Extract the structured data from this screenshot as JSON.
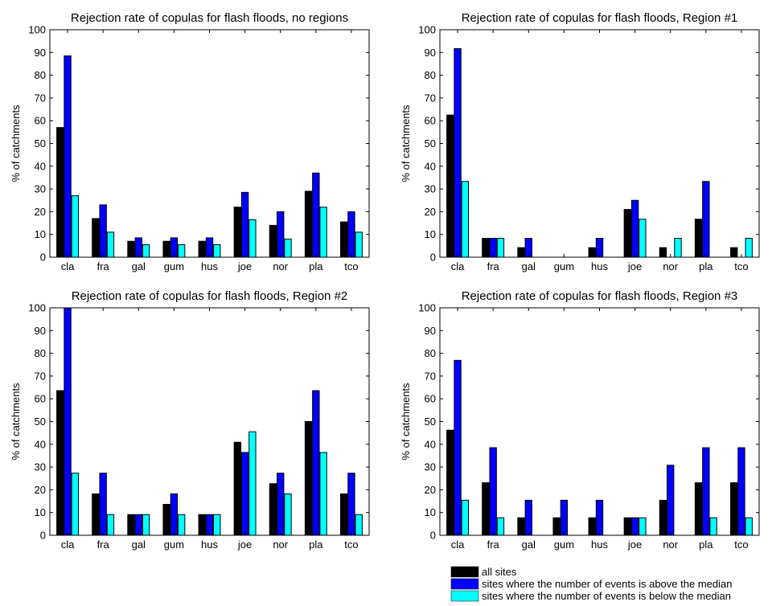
{
  "legend": [
    {
      "label": "all sites",
      "color": "#000000"
    },
    {
      "label": "sites where the number of events is above the median",
      "color": "#0000ff"
    },
    {
      "label": "sites where the number of events is below the median",
      "color": "#00ffff"
    }
  ],
  "chart_data": [
    {
      "type": "bar",
      "title": "Rejection rate of copulas for flash floods, no regions",
      "xlabel": "",
      "ylabel": "% of catchments",
      "ylim": [
        0,
        100
      ],
      "yticks": [
        0,
        10,
        20,
        30,
        40,
        50,
        60,
        70,
        80,
        90,
        100
      ],
      "grid": false,
      "categories": [
        "cla",
        "fra",
        "gal",
        "gum",
        "hus",
        "joe",
        "nor",
        "pla",
        "tco"
      ],
      "series": [
        {
          "name": "all sites",
          "color": "#000000",
          "values": [
            57,
            17,
            7,
            7,
            7,
            22,
            14,
            29,
            15.5
          ]
        },
        {
          "name": "sites where the number of events is above the median",
          "color": "#0000ff",
          "values": [
            88.5,
            23,
            8.5,
            8.5,
            8.5,
            28.5,
            20,
            37,
            20
          ]
        },
        {
          "name": "sites where the number of events is below the median",
          "color": "#00ffff",
          "values": [
            27,
            11,
            5.5,
            5.5,
            5.5,
            16.5,
            8,
            22,
            11
          ]
        }
      ]
    },
    {
      "type": "bar",
      "title": "Rejection rate of copulas for flash floods, Region #1",
      "xlabel": "",
      "ylabel": "% of catchments",
      "ylim": [
        0,
        100
      ],
      "yticks": [
        0,
        10,
        20,
        30,
        40,
        50,
        60,
        70,
        80,
        90,
        100
      ],
      "grid": false,
      "categories": [
        "cla",
        "fra",
        "gal",
        "gum",
        "hus",
        "joe",
        "nor",
        "pla",
        "tco"
      ],
      "series": [
        {
          "name": "all sites",
          "color": "#000000",
          "values": [
            62.5,
            8.3,
            4.2,
            0,
            4.2,
            21,
            4.2,
            16.7,
            4.2
          ]
        },
        {
          "name": "sites where the number of events is above the median",
          "color": "#0000ff",
          "values": [
            91.7,
            8.3,
            8.3,
            0,
            8.3,
            25,
            0,
            33.3,
            0
          ]
        },
        {
          "name": "sites where the number of events is below the median",
          "color": "#00ffff",
          "values": [
            33.3,
            8.3,
            0,
            0,
            0,
            16.7,
            8.3,
            0,
            8.3
          ]
        }
      ]
    },
    {
      "type": "bar",
      "title": "Rejection rate of copulas for flash floods, Region #2",
      "xlabel": "",
      "ylabel": "% of catchments",
      "ylim": [
        0,
        100
      ],
      "yticks": [
        0,
        10,
        20,
        30,
        40,
        50,
        60,
        70,
        80,
        90,
        100
      ],
      "grid": false,
      "categories": [
        "cla",
        "fra",
        "gal",
        "gum",
        "hus",
        "joe",
        "nor",
        "pla",
        "tco"
      ],
      "series": [
        {
          "name": "all sites",
          "color": "#000000",
          "values": [
            63.6,
            18.2,
            9.1,
            13.6,
            9.1,
            40.9,
            22.7,
            50,
            18.2
          ]
        },
        {
          "name": "sites where the number of events is above the median",
          "color": "#0000ff",
          "values": [
            100,
            27.3,
            9.1,
            18.2,
            9.1,
            36.4,
            27.3,
            63.6,
            27.3
          ]
        },
        {
          "name": "sites where the number of events is below the median",
          "color": "#00ffff",
          "values": [
            27.3,
            9.1,
            9.1,
            9.1,
            9.1,
            45.5,
            18.2,
            36.4,
            9.1
          ]
        }
      ]
    },
    {
      "type": "bar",
      "title": "Rejection rate of copulas for flash floods, Region #3",
      "xlabel": "",
      "ylabel": "% of catchments",
      "ylim": [
        0,
        100
      ],
      "yticks": [
        0,
        10,
        20,
        30,
        40,
        50,
        60,
        70,
        80,
        90,
        100
      ],
      "grid": false,
      "categories": [
        "cla",
        "fra",
        "gal",
        "gum",
        "hus",
        "joe",
        "nor",
        "pla",
        "tco"
      ],
      "series": [
        {
          "name": "all sites",
          "color": "#000000",
          "values": [
            46.2,
            23.1,
            7.7,
            7.7,
            7.7,
            7.7,
            15.4,
            23.1,
            23.1
          ]
        },
        {
          "name": "sites where the number of events is above the median",
          "color": "#0000ff",
          "values": [
            76.9,
            38.5,
            15.4,
            15.4,
            15.4,
            7.7,
            30.8,
            38.5,
            38.5
          ]
        },
        {
          "name": "sites where the number of events is below the median",
          "color": "#00ffff",
          "values": [
            15.4,
            7.7,
            0,
            0,
            0,
            7.7,
            0,
            7.7,
            7.7
          ]
        }
      ]
    }
  ]
}
